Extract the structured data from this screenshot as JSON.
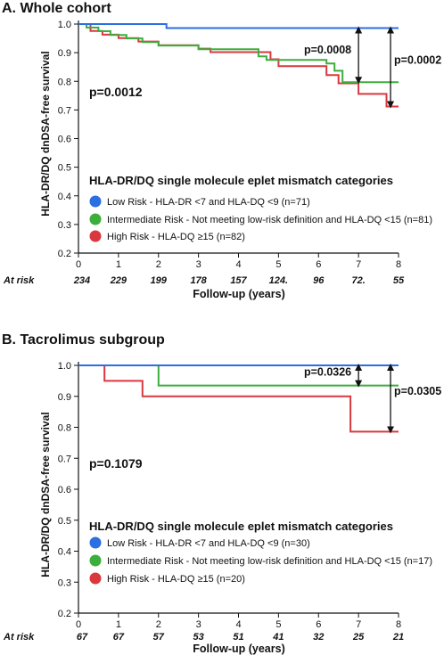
{
  "chart_data": [
    {
      "type": "line",
      "title": "A. Whole cohort",
      "xlabel": "Follow-up (years)",
      "ylabel": "HLA-DR/DQ dnDSA-free survival",
      "xlim": [
        0,
        8
      ],
      "ylim": [
        0.2,
        1.0
      ],
      "x_ticks": [
        "0",
        "1",
        "2",
        "3",
        "4",
        "5",
        "6",
        "7",
        "8"
      ],
      "y_ticks": [
        "0.2",
        "0.3",
        "0.4",
        "0.5",
        "0.6",
        "0.7",
        "0.8",
        "0.9",
        "1.0"
      ],
      "overall_p": "p=0.0012",
      "legend_title": "HLA-DR/DQ single molecule eplet mismatch categories",
      "series": [
        {
          "name": "Low Risk - HLA-DR <7 and HLA-DQ <9 (n=71)",
          "color": "#2b6fe0",
          "x": [
            0,
            2.2,
            2.2,
            8
          ],
          "y": [
            1.0,
            1.0,
            0.986,
            0.986
          ]
        },
        {
          "name": "Intermediate Risk - Not meeting low-risk definition and HLA-DQ <15 (n=81)",
          "color": "#3cae3c",
          "x": [
            0,
            0.2,
            0.2,
            0.5,
            0.5,
            0.8,
            0.8,
            1.2,
            1.2,
            1.6,
            1.6,
            2.0,
            2.0,
            3.0,
            3.0,
            4.5,
            4.5,
            4.7,
            4.7,
            6.2,
            6.2,
            6.4,
            6.4,
            6.6,
            6.6,
            8.0
          ],
          "y": [
            1.0,
            1.0,
            0.988,
            0.988,
            0.975,
            0.975,
            0.962,
            0.962,
            0.95,
            0.95,
            0.937,
            0.937,
            0.925,
            0.925,
            0.912,
            0.912,
            0.887,
            0.887,
            0.875,
            0.875,
            0.862,
            0.862,
            0.837,
            0.837,
            0.797,
            0.797
          ]
        },
        {
          "name": "High Risk - HLA-DQ ≥15 (n=82)",
          "color": "#d9383f",
          "x": [
            0,
            0.3,
            0.3,
            0.6,
            0.6,
            1.0,
            1.0,
            1.5,
            1.5,
            2.0,
            2.0,
            3.0,
            3.0,
            3.3,
            3.3,
            4.8,
            4.8,
            5.0,
            5.0,
            6.2,
            6.2,
            6.5,
            6.5,
            7.0,
            7.0,
            7.7,
            7.7,
            8.0
          ],
          "y": [
            1.0,
            1.0,
            0.976,
            0.976,
            0.963,
            0.963,
            0.951,
            0.951,
            0.939,
            0.939,
            0.926,
            0.926,
            0.914,
            0.914,
            0.902,
            0.902,
            0.877,
            0.877,
            0.853,
            0.853,
            0.822,
            0.822,
            0.793,
            0.793,
            0.756,
            0.756,
            0.712,
            0.712
          ]
        }
      ],
      "annotations": [
        {
          "label": "p=0.0008",
          "x": 7.0,
          "y1": 0.986,
          "y2": 0.797
        },
        {
          "label": "p=0.0002",
          "x": 7.8,
          "y1": 0.986,
          "y2": 0.712
        }
      ],
      "at_risk_label": "At risk",
      "at_risk": [
        "234",
        "229",
        "199",
        "178",
        "157",
        "124.",
        "96",
        "72.",
        "55"
      ]
    },
    {
      "type": "line",
      "title": "B. Tacrolimus subgroup",
      "xlabel": "Follow-up (years)",
      "ylabel": "HLA-DR/DQ dnDSA-free survival",
      "xlim": [
        0,
        8
      ],
      "ylim": [
        0.2,
        1.0
      ],
      "x_ticks": [
        "0",
        "1",
        "2",
        "3",
        "4",
        "5",
        "6",
        "7",
        "8"
      ],
      "y_ticks": [
        "0.2",
        "0.3",
        "0.4",
        "0.5",
        "0.6",
        "0.7",
        "0.8",
        "0.9",
        "1.0"
      ],
      "overall_p": "p=0.1079",
      "legend_title": "HLA-DR/DQ single molecule eplet mismatch categories",
      "series": [
        {
          "name": "Low Risk - HLA-DR <7 and HLA-DQ <9 (n=30)",
          "color": "#2b6fe0",
          "x": [
            0,
            8
          ],
          "y": [
            1.0,
            1.0
          ]
        },
        {
          "name": "Intermediate Risk - Not meeting low-risk definition and HLA-DQ <15 (n=17)",
          "color": "#3cae3c",
          "x": [
            0,
            2.0,
            2.0,
            8.0
          ],
          "y": [
            1.0,
            1.0,
            0.935,
            0.935
          ]
        },
        {
          "name": "High Risk - HLA-DQ ≥15 (n=20)",
          "color": "#d9383f",
          "x": [
            0,
            0.65,
            0.65,
            1.6,
            1.6,
            6.8,
            6.8,
            8.0
          ],
          "y": [
            1.0,
            1.0,
            0.95,
            0.95,
            0.9,
            0.9,
            0.786,
            0.786
          ]
        }
      ],
      "annotations": [
        {
          "label": "p=0.0326",
          "x": 7.0,
          "y1": 1.0,
          "y2": 0.935
        },
        {
          "label": "p=0.0305",
          "x": 7.8,
          "y1": 1.0,
          "y2": 0.786
        }
      ],
      "at_risk_label": "At risk",
      "at_risk": [
        "67",
        "67",
        "57",
        "53",
        "51",
        "41",
        "32",
        "25",
        "21"
      ]
    }
  ]
}
